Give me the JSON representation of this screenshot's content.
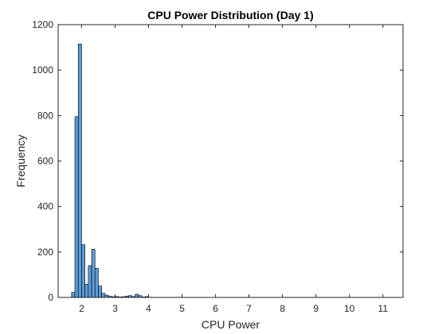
{
  "chart_data": {
    "type": "bar",
    "subtype": "histogram",
    "title": "CPU Power Distribution (Day 1)",
    "xlabel": "CPU Power",
    "ylabel": "Frequency",
    "xlim": [
      1.3,
      11.6
    ],
    "ylim": [
      0,
      1200
    ],
    "xticks": [
      2,
      3,
      4,
      5,
      6,
      7,
      8,
      9,
      10,
      11
    ],
    "yticks": [
      0,
      200,
      400,
      600,
      800,
      1000,
      1200
    ],
    "bin_width": 0.1,
    "bins": [
      {
        "x0": 1.7,
        "x1": 1.8,
        "count": 22
      },
      {
        "x0": 1.8,
        "x1": 1.9,
        "count": 795
      },
      {
        "x0": 1.9,
        "x1": 2.0,
        "count": 1115
      },
      {
        "x0": 2.0,
        "x1": 2.1,
        "count": 232
      },
      {
        "x0": 2.1,
        "x1": 2.2,
        "count": 58
      },
      {
        "x0": 2.2,
        "x1": 2.3,
        "count": 140
      },
      {
        "x0": 2.3,
        "x1": 2.4,
        "count": 212
      },
      {
        "x0": 2.4,
        "x1": 2.5,
        "count": 128
      },
      {
        "x0": 2.5,
        "x1": 2.6,
        "count": 50
      },
      {
        "x0": 2.6,
        "x1": 2.7,
        "count": 18
      },
      {
        "x0": 2.7,
        "x1": 2.8,
        "count": 10
      },
      {
        "x0": 2.8,
        "x1": 2.9,
        "count": 5
      },
      {
        "x0": 2.9,
        "x1": 3.0,
        "count": 3
      },
      {
        "x0": 3.0,
        "x1": 3.1,
        "count": 4
      },
      {
        "x0": 3.1,
        "x1": 3.2,
        "count": 2
      },
      {
        "x0": 3.2,
        "x1": 3.3,
        "count": 3
      },
      {
        "x0": 3.3,
        "x1": 3.4,
        "count": 6
      },
      {
        "x0": 3.4,
        "x1": 3.5,
        "count": 8
      },
      {
        "x0": 3.5,
        "x1": 3.6,
        "count": 4
      },
      {
        "x0": 3.6,
        "x1": 3.7,
        "count": 14
      },
      {
        "x0": 3.7,
        "x1": 3.8,
        "count": 8
      },
      {
        "x0": 3.8,
        "x1": 3.9,
        "count": 2
      },
      {
        "x0": 3.9,
        "x1": 4.0,
        "count": 4
      },
      {
        "x0": 4.0,
        "x1": 4.1,
        "count": 1
      }
    ],
    "bar_color": "#5b9bd5",
    "edge_color": "#000000",
    "grid": false,
    "legend": "none"
  }
}
